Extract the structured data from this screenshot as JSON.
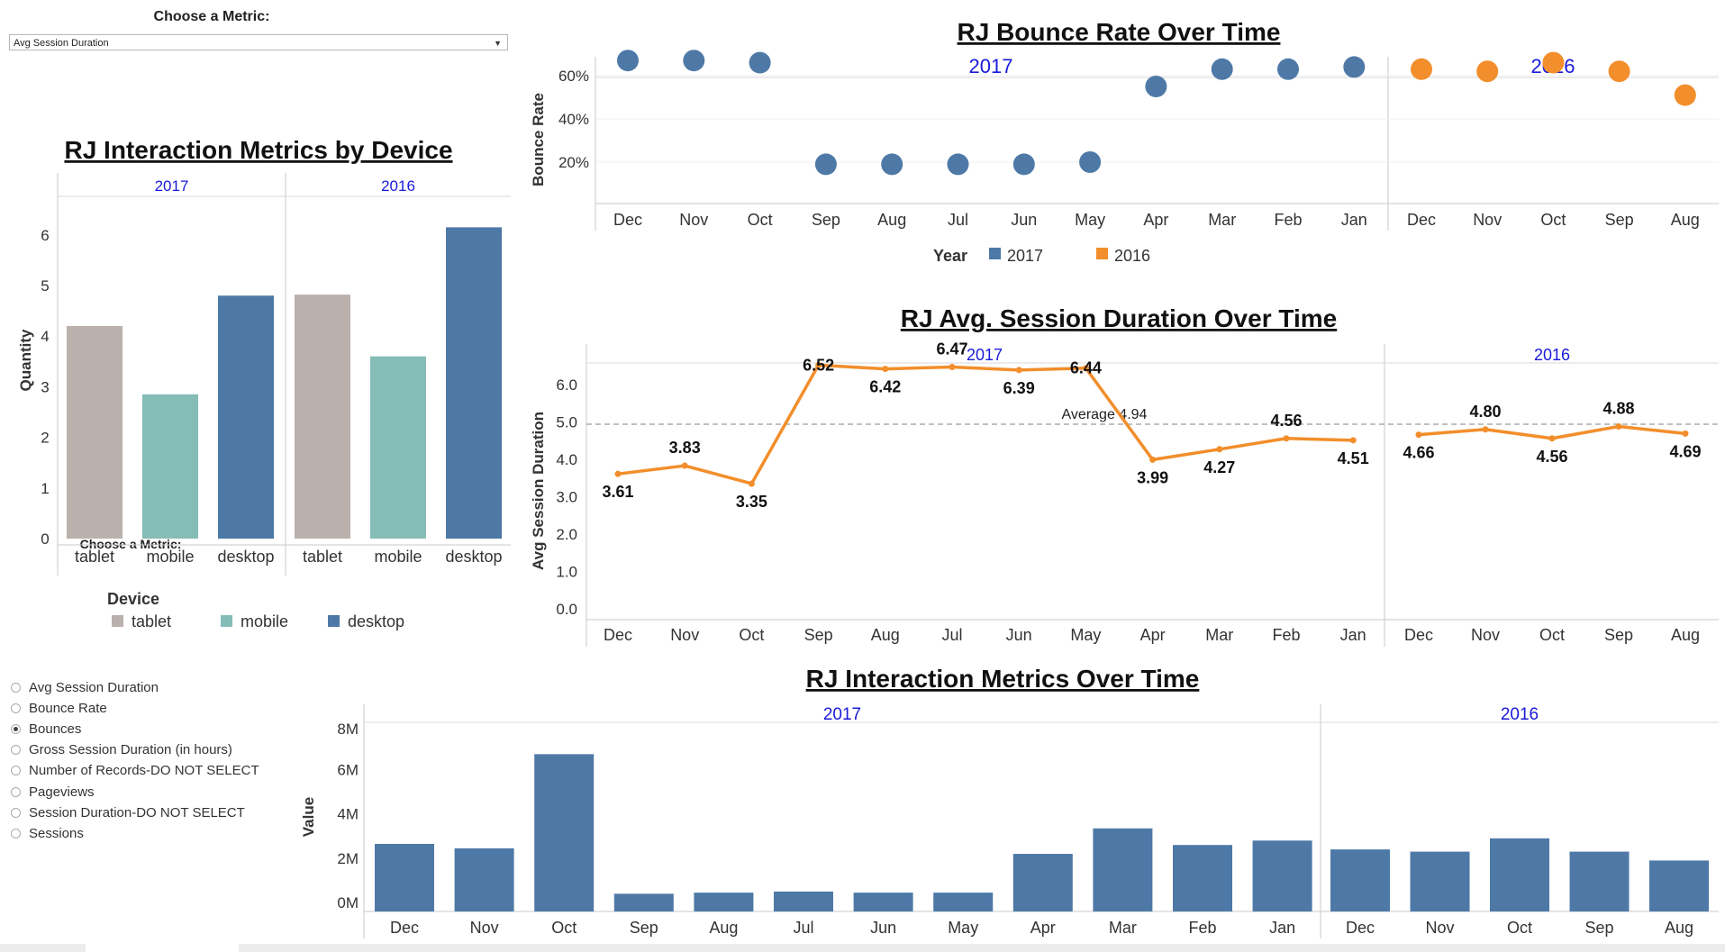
{
  "controls": {
    "top_title": "Choose a Metric:",
    "dropdown_value": "Avg Session Duration",
    "radio_title": "Choose a Metric:",
    "radio_options": [
      "Avg Session Duration",
      "Bounce Rate",
      "Bounces",
      "Gross Session Duration (in hours)",
      "Number of Records-DO NOT SELECT",
      "Pageviews",
      "Session Duration-DO NOT SELECT",
      "Sessions"
    ],
    "radio_selected": "Bounces"
  },
  "months_2017": [
    "Dec",
    "Nov",
    "Oct",
    "Sep",
    "Aug",
    "Jul",
    "Jun",
    "May",
    "Apr",
    "Mar",
    "Feb",
    "Jan"
  ],
  "months_2016": [
    "Dec",
    "Nov",
    "Oct",
    "Sep",
    "Aug"
  ],
  "colors": {
    "blue": "#4e79a7",
    "orange": "#f28e2b",
    "taupe": "#bab0ac",
    "teal": "#86bcb6",
    "header_blue": "#1a1adb"
  },
  "chart_data": [
    {
      "id": "device",
      "type": "bar",
      "title": "RJ Interaction Metrics by Device",
      "ylabel": "Quantity",
      "ylim": [
        0,
        6.5
      ],
      "yticks": [
        0,
        1,
        2,
        3,
        4,
        5,
        6
      ],
      "panels": [
        "2017",
        "2016"
      ],
      "categories": [
        "tablet",
        "mobile",
        "desktop"
      ],
      "values": {
        "2017": [
          4.2,
          2.85,
          4.8
        ],
        "2016": [
          4.82,
          3.6,
          6.15
        ]
      },
      "legend_title": "Device",
      "legend": [
        "tablet",
        "mobile",
        "desktop"
      ]
    },
    {
      "id": "bounce",
      "type": "scatter",
      "title": "RJ Bounce Rate Over Time",
      "ylabel": "Bounce Rate",
      "yticks": [
        "20%",
        "40%",
        "60%"
      ],
      "panels": [
        "2017",
        "2016"
      ],
      "values": {
        "2017": [
          0.67,
          0.67,
          0.66,
          0.19,
          0.19,
          0.19,
          0.19,
          0.2,
          0.55,
          0.63,
          0.63,
          0.64
        ],
        "2016": [
          0.63,
          0.62,
          0.66,
          0.62,
          0.51
        ]
      },
      "legend_title": "Year",
      "legend": [
        "2017",
        "2016"
      ]
    },
    {
      "id": "duration",
      "type": "line",
      "title": "RJ Avg. Session Duration Over Time",
      "ylabel": "Avg Session Duration",
      "yticks": [
        "0.0",
        "1.0",
        "2.0",
        "3.0",
        "4.0",
        "5.0",
        "6.0"
      ],
      "panels": [
        "2017",
        "2016"
      ],
      "values": {
        "2017": [
          3.61,
          3.83,
          3.35,
          6.52,
          6.42,
          6.47,
          6.39,
          6.44,
          3.99,
          4.27,
          4.56,
          4.51
        ],
        "2016": [
          4.66,
          4.8,
          4.56,
          4.88,
          4.69
        ]
      },
      "labels": {
        "2017": [
          "3.61",
          "3.83",
          "3.35",
          "6.52",
          "6.42",
          "6.47",
          "6.39",
          "6.44",
          "3.99",
          "4.27",
          "4.56",
          "4.51"
        ],
        "2016": [
          "4.66",
          "4.80",
          "4.56",
          "4.88",
          "4.69"
        ]
      },
      "average": 4.94,
      "average_text": "Average 4.94"
    },
    {
      "id": "bounces",
      "type": "bar",
      "title": "RJ Interaction Metrics Over Time",
      "ylabel": "Value",
      "yticks": [
        "0M",
        "2M",
        "4M",
        "6M",
        "8M"
      ],
      "panels": [
        "2017",
        "2016"
      ],
      "values": {
        "2017": [
          3.05,
          2.85,
          7.1,
          0.8,
          0.85,
          0.9,
          0.85,
          0.85,
          2.6,
          3.75,
          3.0,
          3.2
        ],
        "2016": [
          2.8,
          2.7,
          3.3,
          2.7,
          2.3
        ]
      }
    }
  ]
}
